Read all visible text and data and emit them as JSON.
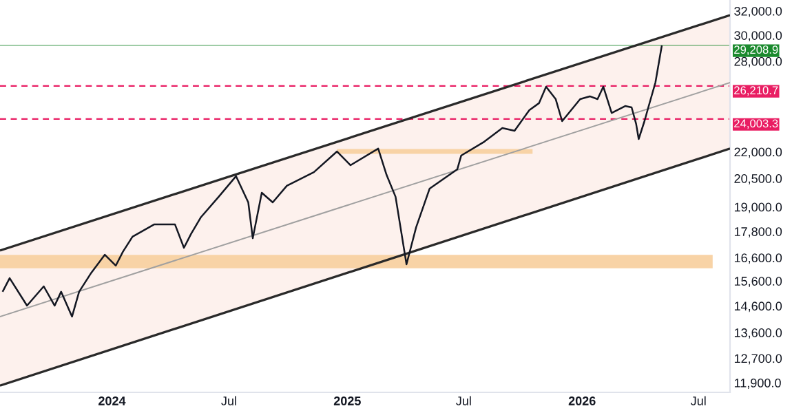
{
  "chart_data": {
    "type": "line",
    "log": "y",
    "grid": false,
    "xlim": [
      "2023-07-11",
      "2026-08-19"
    ],
    "xticks": [
      {
        "value": "2024-01-01",
        "label": "2024"
      },
      {
        "value": "2024-07-01",
        "label": "Jul"
      },
      {
        "value": "2025-01-01",
        "label": "2025"
      },
      {
        "value": "2025-07-01",
        "label": "Jul"
      },
      {
        "value": "2026-01-01",
        "label": "2026"
      },
      {
        "value": "2026-07-01",
        "label": "Jul"
      }
    ],
    "ylim": [
      11600,
      32950
    ],
    "yticks": [
      {
        "value": 11900,
        "label": "11,900.0"
      },
      {
        "value": 12700,
        "label": "12,700.0"
      },
      {
        "value": 13600,
        "label": "13,600.0"
      },
      {
        "value": 14600,
        "label": "14,600.0"
      },
      {
        "value": 15600,
        "label": "15,600.0"
      },
      {
        "value": 16600,
        "label": "16,600.0"
      },
      {
        "value": 17800,
        "label": "17,800.0"
      },
      {
        "value": 19000,
        "label": "19,000.0"
      },
      {
        "value": 20500,
        "label": "20,500.0"
      },
      {
        "value": 22000,
        "label": "22,000.0"
      },
      {
        "value": 28000,
        "label": "28,000.0"
      },
      {
        "value": 30000,
        "label": "30,000.0"
      },
      {
        "value": 32000,
        "label": "32,000.0"
      }
    ],
    "ref_lines": [
      {
        "axis": "y",
        "value": 29208.9,
        "label": "29,208.9",
        "color": "#1b8a2e",
        "line_style": "solid"
      },
      {
        "axis": "y",
        "value": 26210.7,
        "label": "26,210.7",
        "color": "#e91e63",
        "line_style": "dashed"
      },
      {
        "axis": "y",
        "value": 24003.3,
        "label": "24,003.3",
        "color": "#e91e63",
        "line_style": "dashed"
      }
    ],
    "series": [
      {
        "color": "#f8d3a6",
        "x": [
          "2023-07-11",
          "2026-07-23"
        ],
        "values": [
          16430,
          16430
        ]
      },
      {
        "color": "#f8d3a6",
        "x": [
          "2024-12-16",
          "2025-10-16"
        ],
        "values": [
          22020,
          22020
        ]
      },
      {
        "color": "#a0a0a0",
        "x": [
          "2023-07-11",
          "2026-08-19"
        ],
        "values": [
          14190,
          26450
        ],
        "lower": [
          11810,
          22190
        ],
        "upper": [
          16920,
          31650
        ]
      },
      {
        "color": "#2a2a2a",
        "x": [
          "2023-07-11",
          "2026-08-19"
        ],
        "values": [
          11810,
          22190
        ]
      },
      {
        "color": "#2a2a2a",
        "x": [
          "2023-07-11",
          "2026-08-19"
        ],
        "values": [
          16920,
          31650
        ]
      },
      {
        "color": "#131722",
        "x": [
          "2023-07-15",
          "2023-07-26",
          "2023-08-22",
          "2023-09-17",
          "2023-10-04",
          "2023-10-14",
          "2023-10-31",
          "2023-11-11",
          "2023-11-30",
          "2023-12-21",
          "2024-01-07",
          "2024-01-18",
          "2024-02-02",
          "2024-03-07",
          "2024-04-08",
          "2024-04-22",
          "2024-05-03",
          "2024-05-18",
          "2024-06-15",
          "2024-07-12",
          "2024-07-31",
          "2024-08-07",
          "2024-08-21",
          "2024-09-07",
          "2024-09-29",
          "2024-11-10",
          "2024-12-16",
          "2025-01-06",
          "2025-02-18",
          "2025-03-03",
          "2025-03-17",
          "2025-04-03",
          "2025-04-18",
          "2025-05-09",
          "2025-06-21",
          "2025-06-27",
          "2025-08-02",
          "2025-08-30",
          "2025-09-18",
          "2025-10-11",
          "2025-10-26",
          "2025-11-06",
          "2025-11-21",
          "2025-12-01",
          "2025-12-29",
          "2026-01-13",
          "2026-01-25",
          "2026-02-03",
          "2026-02-16",
          "2026-03-09",
          "2026-03-19",
          "2026-03-26",
          "2026-03-30",
          "2026-04-08",
          "2026-04-14",
          "2026-04-25",
          "2026-05-05"
        ],
        "values": [
          15160,
          15720,
          14610,
          15380,
          14610,
          15160,
          14190,
          15160,
          15950,
          16730,
          16250,
          16860,
          17550,
          18140,
          18140,
          17040,
          17680,
          18470,
          19520,
          20620,
          19230,
          17480,
          19730,
          19230,
          20100,
          20840,
          22020,
          21230,
          22190,
          20690,
          19520,
          16310,
          18000,
          19950,
          21000,
          21780,
          22600,
          23440,
          23270,
          24580,
          25040,
          26160,
          25310,
          23870,
          25310,
          25500,
          25310,
          26160,
          24400,
          24850,
          24760,
          23700,
          22760,
          23870,
          24760,
          26450,
          29200
        ]
      }
    ]
  }
}
